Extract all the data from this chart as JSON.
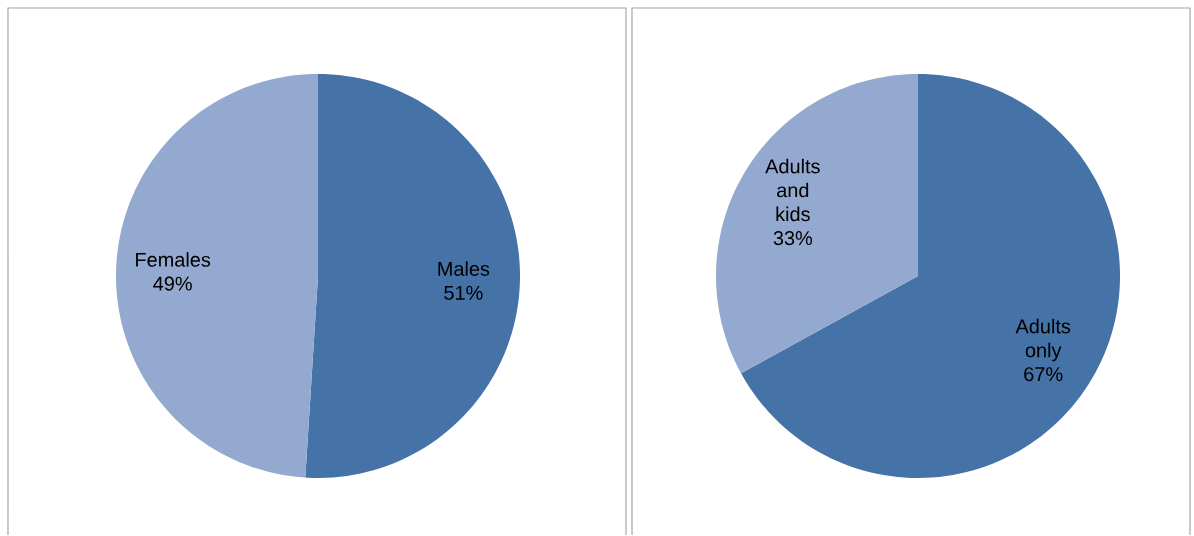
{
  "chart_data": [
    {
      "type": "pie",
      "categories": [
        "Males",
        "Females"
      ],
      "values": [
        51,
        49
      ],
      "colors": [
        "#4572a7",
        "#93a9cf"
      ],
      "value_labels": [
        "51%",
        "49%"
      ]
    },
    {
      "type": "pie",
      "categories": [
        "Adults only",
        "Adults and kids"
      ],
      "values": [
        67,
        33
      ],
      "colors": [
        "#4572a7",
        "#93a9cf"
      ],
      "value_labels": [
        "67%",
        "33%"
      ]
    }
  ]
}
